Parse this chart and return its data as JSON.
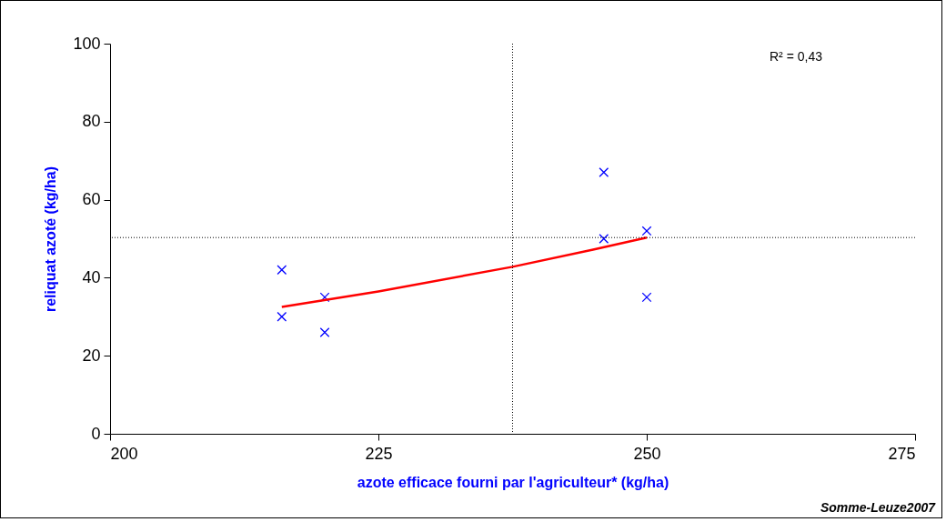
{
  "chart_data": {
    "type": "scatter",
    "xlabel": "azote efficace fourni par l'agriculteur* (kg/ha)",
    "ylabel": "reliquat azoté (kg/ha)",
    "xlim": [
      200,
      275
    ],
    "xticks": [
      200,
      225,
      250,
      275
    ],
    "ylim": [
      0,
      100
    ],
    "yticks": [
      0,
      20,
      40,
      60,
      80,
      100
    ],
    "grid": false,
    "marker": "cross",
    "series": [
      {
        "color": "#0000ff",
        "x": [
          216,
          216,
          220,
          220,
          246,
          246,
          250,
          250
        ],
        "values": [
          42,
          30,
          35,
          26,
          67,
          50,
          52,
          35
        ]
      },
      {
        "type": "line",
        "color": "#ff0000",
        "marker": "none",
        "x": [
          216,
          225,
          237.5,
          245,
          250
        ],
        "values": [
          32.5,
          36.5,
          42.8,
          47.2,
          50.3
        ]
      }
    ],
    "ref_lines": [
      {
        "axis": "x",
        "value": 237.5,
        "line_style": "dotted",
        "color": "#000000"
      },
      {
        "axis": "y",
        "value": 50.3,
        "line_style": "dotted",
        "color": "#000000"
      }
    ],
    "annotations": [
      "R² = 0,43",
      "Somme-Leuze2007"
    ]
  }
}
